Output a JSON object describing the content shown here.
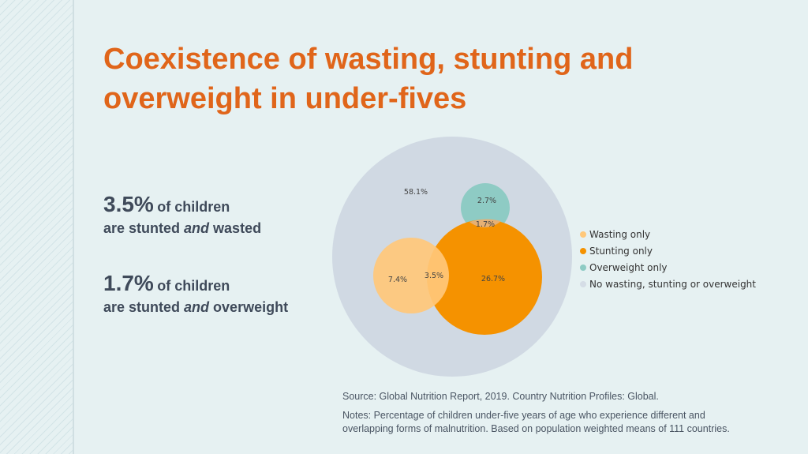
{
  "title": {
    "line1": "Coexistence of wasting, stunting and",
    "line2": "overweight in under-fives"
  },
  "stats": [
    {
      "value": "3.5%",
      "label": "of children",
      "line2_pre": "are stunted ",
      "line2_em": "and",
      "line2_post": " wasted"
    },
    {
      "value": "1.7%",
      "label": "of children",
      "line2_pre": "are stunted ",
      "line2_em": "and",
      "line2_post": " overweight"
    }
  ],
  "venn": {
    "none": "58.1%",
    "overweight_only": "2.7%",
    "stunting_overweight": "1.7%",
    "wasting_only": "7.4%",
    "stunting_wasting": "3.5%",
    "stunting_only": "26.7%"
  },
  "legend": [
    {
      "label": "Wasting only",
      "color": "#ffc87a"
    },
    {
      "label": "Stunting only",
      "color": "#f59200"
    },
    {
      "label": "Overweight only",
      "color": "#8ecbc4"
    },
    {
      "label": "No wasting, stunting or overweight",
      "color": "#d5dde6"
    }
  ],
  "colors": {
    "title": "#e0651a",
    "outer": "#d0d9e3",
    "stunting": "#f59200",
    "wasting": "#ffc87a",
    "overweight": "#8ecbc4"
  },
  "source": "Source: Global Nutrition Report, 2019. Country Nutrition Profiles: Global.",
  "notes": "Notes: Percentage of children under-five years of age who experience different and overlapping forms of malnutrition. Based on population weighted means of 111 countries."
}
